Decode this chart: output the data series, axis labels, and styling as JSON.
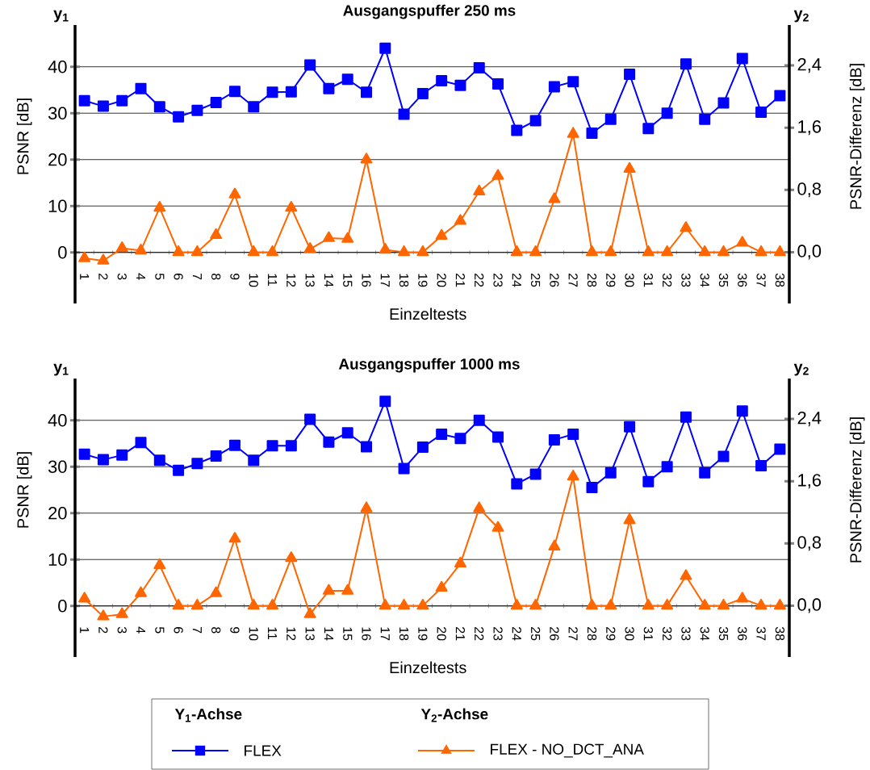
{
  "chart_data": [
    {
      "type": "line",
      "title": "Ausgangspuffer 250 ms",
      "xlabel": "Einzeltests",
      "ylabel": "PSNR [dB]",
      "y2label": "PSNR-Differenz [dB]",
      "annotations": [
        "y$_{1}$",
        "y$_{2}$"
      ],
      "categories": [
        "1",
        "2",
        "3",
        "4",
        "5",
        "6",
        "7",
        "8",
        "9",
        "10",
        "11",
        "12",
        "13",
        "14",
        "15",
        "16",
        "17",
        "18",
        "19",
        "20",
        "21",
        "22",
        "23",
        "24",
        "25",
        "26",
        "27",
        "28",
        "29",
        "30",
        "31",
        "32",
        "33",
        "34",
        "35",
        "36",
        "37",
        "38"
      ],
      "series": [
        {
          "color": "#0000ff",
          "marker": "square",
          "line_style": "solid",
          "values": [
            32.7,
            31.5,
            32.7,
            35.3,
            31.4,
            29.2,
            30.6,
            32.3,
            34.7,
            31.4,
            34.5,
            34.6,
            40.4,
            35.3,
            37.3,
            34.5,
            44.0,
            29.8,
            34.2,
            37.0,
            36.0,
            39.8,
            36.3,
            26.3,
            28.4,
            35.7,
            36.8,
            25.7,
            28.7,
            38.4,
            26.7,
            30.0,
            40.6,
            28.7,
            32.2,
            41.8,
            30.2,
            33.8
          ]
        },
        {
          "color": "#ff6600",
          "marker": "triangle",
          "line_style": "solid",
          "axis": "y2",
          "values": [
            -0.08,
            -0.11,
            0.05,
            0.02,
            0.57,
            0,
            0,
            0.22,
            0.74,
            0,
            0,
            0.57,
            0.04,
            0.18,
            0.17,
            1.19,
            0.03,
            0,
            0,
            0.21,
            0.4,
            0.78,
            0.98,
            0,
            0,
            0.68,
            1.52,
            0,
            0,
            1.07,
            0,
            0,
            0.31,
            0,
            0,
            0.12,
            0,
            0
          ]
        }
      ],
      "ylim": [
        -11,
        49
      ],
      "yticks": [
        0,
        10,
        20,
        30,
        40
      ],
      "y2lim": [
        -0.66,
        2.92
      ],
      "y2ticks": [
        {
          "value": 0,
          "label": "0,0"
        },
        {
          "value": 0.8,
          "label": "0,8"
        },
        {
          "value": 1.6,
          "label": "1,6"
        },
        {
          "value": 2.4,
          "label": "2,4"
        }
      ],
      "grid": "y",
      "legend": false
    },
    {
      "type": "line",
      "title": "Ausgangspuffer 1000 ms",
      "xlabel": "Einzeltests",
      "ylabel": "PSNR [dB]",
      "y2label": "PSNR-Differenz [dB]",
      "annotations": [
        "y$_{1}$",
        "y$_{2}$",
        "Y$_{1}$-Achse",
        "Y$_{2}$-Achse"
      ],
      "categories": [
        "1",
        "2",
        "3",
        "4",
        "5",
        "6",
        "7",
        "8",
        "9",
        "10",
        "11",
        "12",
        "13",
        "14",
        "15",
        "16",
        "17",
        "18",
        "19",
        "20",
        "21",
        "22",
        "23",
        "24",
        "25",
        "26",
        "27",
        "28",
        "29",
        "30",
        "31",
        "32",
        "33",
        "34",
        "35",
        "36",
        "37",
        "38"
      ],
      "series": [
        {
          "name": "FLEX",
          "color": "#0000ff",
          "marker": "square",
          "line_style": "solid",
          "values": [
            32.7,
            31.5,
            32.5,
            35.2,
            31.4,
            29.2,
            30.7,
            32.3,
            34.6,
            31.4,
            34.5,
            34.5,
            40.2,
            35.3,
            37.3,
            34.3,
            44.1,
            29.6,
            34.2,
            37.0,
            36.1,
            40.0,
            36.4,
            26.3,
            28.4,
            35.8,
            37.0,
            25.5,
            28.7,
            38.6,
            26.8,
            30.0,
            40.7,
            28.7,
            32.2,
            42.0,
            30.2,
            33.8
          ]
        },
        {
          "name": "FLEX - NO_DCT_ANA",
          "color": "#ff6600",
          "marker": "triangle",
          "line_style": "solid",
          "axis": "y2",
          "values": [
            0.09,
            -0.14,
            -0.11,
            0.16,
            0.52,
            0,
            0,
            0.16,
            0.86,
            0,
            0,
            0.61,
            -0.11,
            0.19,
            0.19,
            1.25,
            0,
            0,
            0,
            0.23,
            0.54,
            1.25,
            1.0,
            0,
            0,
            0.76,
            1.66,
            0,
            0,
            1.1,
            0,
            0,
            0.38,
            0,
            0,
            0.09,
            0,
            0
          ]
        }
      ],
      "ylim": [
        -11,
        49
      ],
      "yticks": [
        0,
        10,
        20,
        30,
        40
      ],
      "y2lim": [
        -0.66,
        2.92
      ],
      "y2ticks": [
        {
          "value": 0,
          "label": "0,0"
        },
        {
          "value": 0.8,
          "label": "0,8"
        },
        {
          "value": 1.6,
          "label": "1,6"
        },
        {
          "value": 2.4,
          "label": "2,4"
        }
      ],
      "grid": "y",
      "legend": "bottom"
    }
  ]
}
